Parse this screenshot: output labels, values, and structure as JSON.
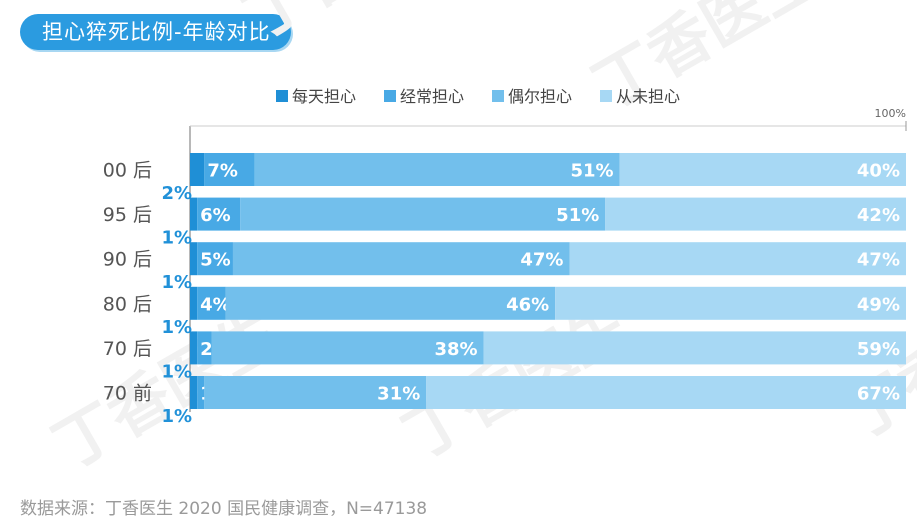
{
  "header": {
    "title": "担心猝死比例-年龄对比"
  },
  "footer": {
    "source": "数据来源：丁香医生 2020 国民健康调查，N=47138"
  },
  "watermark": {
    "text": "丁香医生"
  },
  "colors": {
    "title_bg": "#2b9be0",
    "series": [
      "#1f8fd6",
      "#48a9e5",
      "#72bfec",
      "#a7d8f4"
    ],
    "small_label": "#2191d8",
    "axis_text": "#555555"
  },
  "chart_data": {
    "type": "bar",
    "orientation": "horizontal",
    "stacked": true,
    "categories": [
      "00 后",
      "95 后",
      "90 后",
      "80 后",
      "70 后",
      "70 前"
    ],
    "series": [
      {
        "name": "每天担心",
        "values": [
          2,
          1,
          1,
          1,
          1,
          1
        ]
      },
      {
        "name": "经常担心",
        "values": [
          7,
          6,
          5,
          4,
          2,
          1
        ]
      },
      {
        "name": "偶尔担心",
        "values": [
          51,
          51,
          47,
          46,
          38,
          31
        ]
      },
      {
        "name": "从未担心",
        "values": [
          40,
          42,
          47,
          49,
          59,
          67
        ]
      }
    ],
    "value_suffix": "%",
    "xlim": [
      0,
      100
    ],
    "top_axis_label": "100%",
    "legend_position": "top",
    "grid": false
  }
}
